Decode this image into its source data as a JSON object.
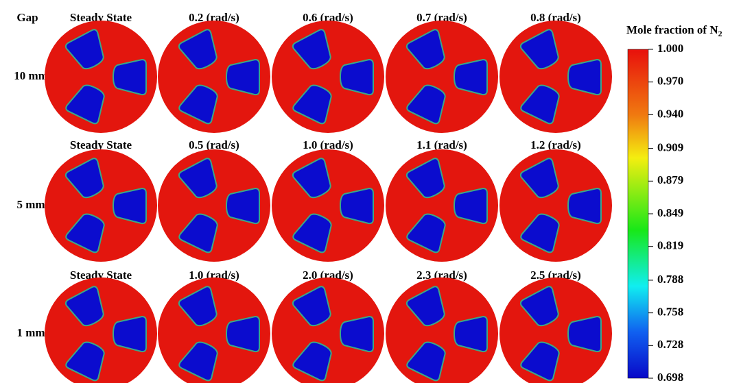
{
  "header": {
    "gap_label": "Gap"
  },
  "rows": [
    {
      "label": "10 mm",
      "columns": [
        "Steady State",
        "0.2 (rad/s)",
        "0.6 (rad/s)",
        "0.7 (rad/s)",
        "0.8 (rad/s)"
      ]
    },
    {
      "label": "5 mm",
      "columns": [
        "Steady State",
        "0.5 (rad/s)",
        "1.0 (rad/s)",
        "1.1 (rad/s)",
        "1.2 (rad/s)"
      ]
    },
    {
      "label": "1 mm",
      "columns": [
        "Steady State",
        "1.0 (rad/s)",
        "2.0 (rad/s)",
        "2.3 (rad/s)",
        "2.5 (rad/s)"
      ]
    }
  ],
  "colorbar": {
    "title": "Mole fraction of N",
    "title_subscript": "2",
    "ticks": [
      {
        "value": 1.0,
        "label": "1.000"
      },
      {
        "value": 0.97,
        "label": "0.970"
      },
      {
        "value": 0.94,
        "label": "0.940"
      },
      {
        "value": 0.909,
        "label": "0.909"
      },
      {
        "value": 0.879,
        "label": "0.879"
      },
      {
        "value": 0.849,
        "label": "0.849"
      },
      {
        "value": 0.819,
        "label": "0.819"
      },
      {
        "value": 0.788,
        "label": "0.788"
      },
      {
        "value": 0.758,
        "label": "0.758"
      },
      {
        "value": 0.728,
        "label": "0.728"
      },
      {
        "value": 0.698,
        "label": "0.698"
      }
    ]
  }
}
